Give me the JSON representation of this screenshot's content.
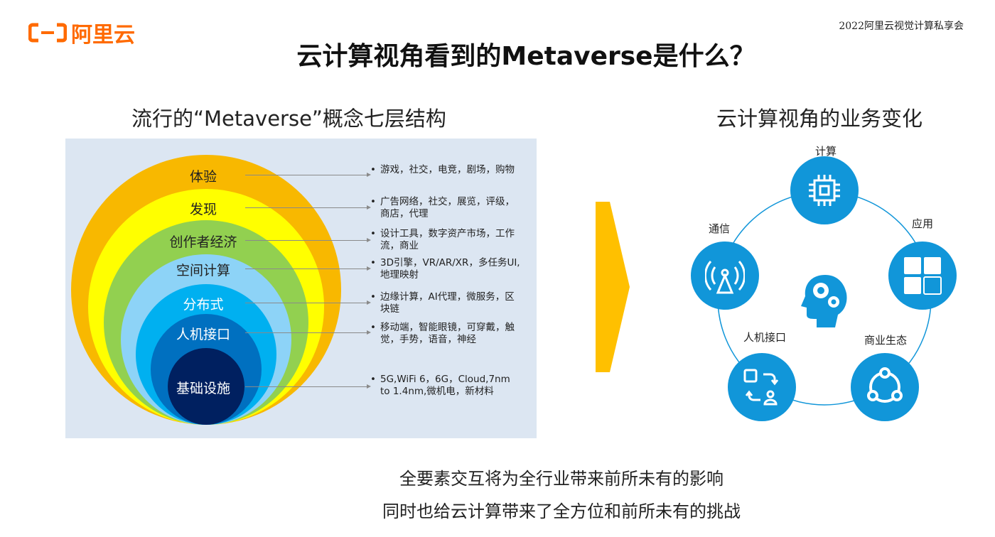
{
  "logo": {
    "text": "阿里云",
    "color": "#FF6A00"
  },
  "event": "2022阿里云视觉计算私享会",
  "title": "云计算视角看到的Metaverse是什么？",
  "left": {
    "subtitle": "流行的“Metaverse”概念七层结构",
    "layers": [
      {
        "label": "体验",
        "color": "#F8B800",
        "items": "游戏，社交，电竞，剧场，购物"
      },
      {
        "label": "发现",
        "color": "#FFFF00",
        "items": "广告网络，社交，展览，评级，商店，代理"
      },
      {
        "label": "创作者经济",
        "color": "#92D050",
        "items": "设计工具，数字资产市场，工作流，商业"
      },
      {
        "label": "空间计算",
        "color": "#8DD3F7",
        "items": "3D引擎，VR/AR/XR，多任务UI,地理映射"
      },
      {
        "label": "分布式",
        "color": "#00B0F0",
        "items": "边缘计算，AI代理，微服务，区块链"
      },
      {
        "label": "人机接口",
        "color": "#0070C0",
        "items": "移动端，智能眼镜，可穿戴，触觉，手势，语音，神经"
      },
      {
        "label": "基础设施",
        "color": "#002060",
        "items": "5G,WiFi 6，6G，Cloud,7nm to 1.4nm,微机电，新材料"
      }
    ]
  },
  "right": {
    "subtitle": "云计算视角的业务变化",
    "accent": "#1196D9",
    "nodes": [
      {
        "label": "计算",
        "icon": "chip-icon"
      },
      {
        "label": "应用",
        "icon": "apps-grid-icon"
      },
      {
        "label": "商业生态",
        "icon": "ecosystem-icon"
      },
      {
        "label": "人机接口",
        "icon": "interaction-icon"
      },
      {
        "label": "通信",
        "icon": "antenna-icon"
      }
    ]
  },
  "footer": [
    "全要素交互将为全行业带来前所未有的影响",
    "同时也给云计算带来了全方位和前所未有的挑战"
  ]
}
